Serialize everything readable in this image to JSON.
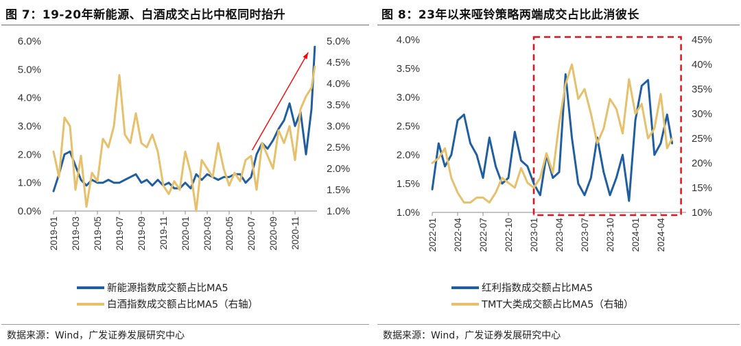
{
  "figures": [
    {
      "title": "图 7：19-20年新能源、白酒成交占比中枢同时抬升",
      "source": "数据来源：Wind，广发证券发展研究中心",
      "chart_data": {
        "type": "line",
        "x_ticks": [
          "2019-01",
          "2019-03",
          "2019-05",
          "2019-07",
          "2019-09",
          "2019-11",
          "2020-01",
          "2020-03",
          "2020-05",
          "2020-07",
          "2020-09",
          "2020-11"
        ],
        "y_left": {
          "ticks": [
            "6.0%",
            "5.0%",
            "4.0%",
            "3.0%",
            "2.0%",
            "1.0%",
            "0.0%"
          ],
          "range": [
            0,
            6
          ]
        },
        "y_right": {
          "ticks": [
            "5.0%",
            "4.5%",
            "4.0%",
            "3.5%",
            "3.0%",
            "2.5%",
            "2.0%",
            "1.5%",
            "1.0%"
          ],
          "range": [
            1,
            5
          ]
        },
        "series": [
          {
            "name": "新能源指数成交额占比MA5",
            "axis": "left",
            "color": "#1f5fa0",
            "x": [
              0,
              0.25,
              0.5,
              0.75,
              1,
              1.25,
              1.5,
              1.75,
              2,
              2.25,
              2.5,
              2.75,
              3,
              3.25,
              3.5,
              3.75,
              4,
              4.25,
              4.5,
              4.75,
              5,
              5.25,
              5.5,
              5.75,
              6,
              6.25,
              6.5,
              6.75,
              7,
              7.25,
              7.5,
              7.75,
              8,
              8.25,
              8.5,
              8.75,
              9,
              9.25,
              9.5,
              9.75,
              10,
              10.25,
              10.5,
              10.75,
              11,
              11.25,
              11.5,
              11.75,
              11.9
            ],
            "values": [
              0.7,
              1.3,
              2.0,
              2.1,
              1.6,
              1.1,
              0.9,
              1.1,
              1.0,
              1.0,
              1.1,
              1.0,
              1.0,
              1.1,
              1.2,
              1.3,
              1.0,
              1.1,
              0.9,
              1.1,
              0.9,
              1.0,
              0.8,
              0.8,
              1.0,
              0.8,
              1.3,
              1.1,
              1.3,
              1.2,
              1.1,
              1.2,
              1.2,
              1.3,
              1.3,
              1.0,
              1.2,
              2.0,
              2.4,
              2.2,
              2.5,
              2.9,
              3.2,
              3.8,
              3.0,
              3.5,
              2.0,
              3.6,
              5.8
            ]
          },
          {
            "name": "白酒指数成交额占比MA5（右轴）",
            "axis": "right",
            "color": "#e6c06a",
            "x": [
              0,
              0.25,
              0.5,
              0.75,
              1,
              1.25,
              1.5,
              1.75,
              2,
              2.25,
              2.5,
              2.75,
              3,
              3.25,
              3.5,
              3.75,
              4,
              4.25,
              4.5,
              4.75,
              5,
              5.25,
              5.5,
              5.75,
              6,
              6.25,
              6.5,
              6.75,
              7,
              7.25,
              7.5,
              7.75,
              8,
              8.25,
              8.5,
              8.75,
              9,
              9.25,
              9.5,
              9.75,
              10,
              10.25,
              10.5,
              10.75,
              11,
              11.25,
              11.5,
              11.75,
              11.9
            ],
            "values": [
              2.4,
              1.8,
              3.2,
              3.0,
              1.5,
              2.3,
              1.1,
              1.9,
              1.7,
              2.7,
              2.5,
              3.0,
              4.2,
              2.8,
              2.6,
              3.3,
              2.6,
              2.5,
              2.8,
              2.4,
              1.6,
              1.4,
              1.7,
              1.5,
              2.4,
              1.9,
              1.0,
              2.2,
              2.0,
              1.8,
              2.6,
              2.0,
              1.6,
              1.9,
              1.7,
              2.2,
              2.3,
              1.5,
              2.6,
              2.3,
              2.0,
              2.9,
              2.6,
              3.0,
              2.2,
              3.4,
              3.7,
              3.9,
              4.4
            ]
          }
        ],
        "annotations": [
          {
            "type": "arrow",
            "from": [
              9.05,
              2.15
            ],
            "to": [
              11.6,
              5.6
            ],
            "color": "#ff0000"
          }
        ]
      }
    },
    {
      "title": "图 8：23年以来哑铃策略两端成交占比此消彼长",
      "source": "数据来源：Wind，广发证券发展研究中心",
      "chart_data": {
        "type": "line",
        "x_ticks": [
          "2022-01",
          "2022-04",
          "2022-07",
          "2022-10",
          "2023-01",
          "2023-04",
          "2023-07",
          "2023-10",
          "2024-01",
          "2024-04"
        ],
        "y_left": {
          "ticks": [
            "4.0%",
            "3.5%",
            "3.0%",
            "2.5%",
            "2.0%",
            "1.5%",
            "1.0%"
          ],
          "range": [
            1,
            4
          ]
        },
        "y_right": {
          "ticks": [
            "45%",
            "40%",
            "35%",
            "30%",
            "25%",
            "20%",
            "15%",
            "10%"
          ],
          "range": [
            10,
            45
          ]
        },
        "series": [
          {
            "name": "红利指数成交额占比MA5",
            "axis": "left",
            "color": "#1f5fa0",
            "x": [
              0,
              0.25,
              0.5,
              0.75,
              1,
              1.25,
              1.5,
              1.75,
              2,
              2.25,
              2.5,
              2.75,
              3,
              3.25,
              3.5,
              3.75,
              4,
              4.25,
              4.5,
              4.75,
              5,
              5.25,
              5.5,
              5.75,
              6,
              6.25,
              6.5,
              6.75,
              7,
              7.25,
              7.5,
              7.75,
              8,
              8.25,
              8.5,
              8.75,
              9,
              9.25,
              9.45
            ],
            "values": [
              1.4,
              2.2,
              1.8,
              2.0,
              2.6,
              2.7,
              2.2,
              2.0,
              1.6,
              2.3,
              1.8,
              1.5,
              1.6,
              2.4,
              1.9,
              1.8,
              1.5,
              1.3,
              2.0,
              1.6,
              1.7,
              3.4,
              2.3,
              1.5,
              1.3,
              1.6,
              2.3,
              1.7,
              1.3,
              1.6,
              2.0,
              1.2,
              2.6,
              3.2,
              3.3,
              2.0,
              2.2,
              2.7,
              2.2
            ]
          },
          {
            "name": "TMT大类成交额占比MA5（右轴）",
            "axis": "right",
            "color": "#e6c06a",
            "x": [
              0,
              0.25,
              0.5,
              0.75,
              1,
              1.25,
              1.5,
              1.75,
              2,
              2.25,
              2.5,
              2.75,
              3,
              3.25,
              3.5,
              3.75,
              4,
              4.25,
              4.5,
              4.75,
              5,
              5.25,
              5.5,
              5.75,
              6,
              6.25,
              6.5,
              6.75,
              7,
              7.25,
              7.5,
              7.75,
              8,
              8.25,
              8.5,
              8.75,
              9,
              9.25,
              9.45
            ],
            "values": [
              20,
              21,
              23,
              17,
              14,
              12,
              12,
              13,
              13,
              12,
              14,
              17,
              16,
              15,
              19,
              16,
              15,
              17,
              22,
              18,
              28,
              36,
              40,
              33,
              35,
              30,
              24,
              27,
              33,
              31,
              26,
              37,
              30,
              32,
              25,
              27,
              34,
              23,
              25
            ]
          }
        ],
        "highlight_box": {
          "x_from": 4.0,
          "x_to": 9.8,
          "color": "#e8101a"
        }
      }
    }
  ]
}
